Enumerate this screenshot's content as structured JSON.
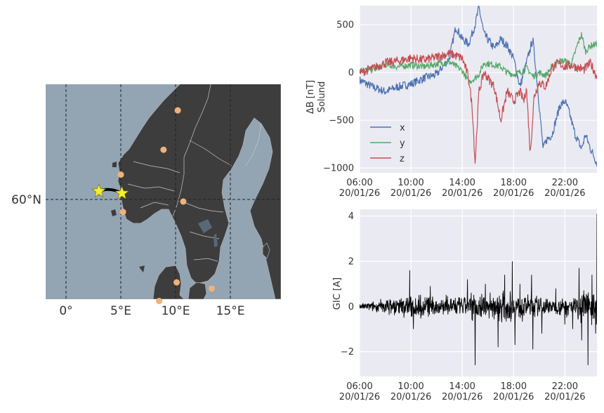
{
  "map": {
    "lon_ticks": [
      "0°",
      "5°E",
      "10°E",
      "15°E"
    ],
    "lat_ticks": [
      "60°N"
    ],
    "colors": {
      "sea": "#93a4b3",
      "land": "#3d3d3d",
      "border": "#c8c8c8",
      "grid": "#222222",
      "station": "#f0b27a",
      "star": "#f3ef2d",
      "line": "#000000"
    },
    "magnetometer_stations": [
      {
        "lon": 10.2,
        "lat": 64.3
      },
      {
        "lon": 8.9,
        "lat": 62.4
      },
      {
        "lon": 5.0,
        "lat": 61.2
      },
      {
        "lon": 10.7,
        "lat": 59.9
      },
      {
        "lon": 5.2,
        "lat": 59.4
      },
      {
        "lon": 13.3,
        "lat": 55.7
      },
      {
        "lon": 10.1,
        "lat": 56.0
      },
      {
        "lon": 8.5,
        "lat": 55.1
      }
    ],
    "line_endpoints": [
      {
        "lon": 3.0,
        "lat": 60.4
      },
      {
        "lon": 5.1,
        "lat": 60.3
      }
    ]
  },
  "chart_data": [
    {
      "type": "line",
      "ylabel": "ΔB [nT]",
      "ylabel2": "Solund",
      "yticks": [
        500,
        0,
        -500,
        -1000
      ],
      "ylim": [
        -1050,
        700
      ],
      "xlim_hours": [
        6,
        24.5
      ],
      "xtick_hours": [
        6,
        10,
        14,
        18,
        22
      ],
      "xticks": [
        [
          "06:00",
          "20/01/26"
        ],
        [
          "10:00",
          "20/01/26"
        ],
        [
          "14:00",
          "20/01/26"
        ],
        [
          "18:00",
          "20/01/26"
        ],
        [
          "22:00",
          "20/01/26"
        ]
      ],
      "grid": true,
      "legend_position": "bottom-left",
      "series": [
        {
          "name": "x",
          "color": "#4c72b0",
          "points": [
            [
              6.0,
              -80
            ],
            [
              7.0,
              -150
            ],
            [
              8.0,
              -200
            ],
            [
              9.0,
              -150
            ],
            [
              10.0,
              -120
            ],
            [
              11.0,
              -60
            ],
            [
              12.0,
              -20
            ],
            [
              13.0,
              150
            ],
            [
              13.5,
              480
            ],
            [
              14.0,
              350
            ],
            [
              14.5,
              300
            ],
            [
              15.0,
              500
            ],
            [
              15.3,
              680
            ],
            [
              15.7,
              400
            ],
            [
              16.5,
              250
            ],
            [
              17.0,
              350
            ],
            [
              17.5,
              280
            ],
            [
              18.0,
              150
            ],
            [
              18.5,
              -150
            ],
            [
              19.0,
              100
            ],
            [
              19.5,
              350
            ],
            [
              19.8,
              -50
            ],
            [
              20.0,
              -350
            ],
            [
              20.3,
              -800
            ],
            [
              20.6,
              -700
            ],
            [
              21.0,
              -650
            ],
            [
              21.3,
              -500
            ],
            [
              21.6,
              -350
            ],
            [
              22.0,
              -300
            ],
            [
              22.3,
              -400
            ],
            [
              22.8,
              -650
            ],
            [
              23.3,
              -800
            ],
            [
              23.6,
              -650
            ],
            [
              24.0,
              -800
            ],
            [
              24.5,
              -950
            ]
          ]
        },
        {
          "name": "y",
          "color": "#55a868",
          "points": [
            [
              6.0,
              20
            ],
            [
              7.0,
              30
            ],
            [
              8.0,
              80
            ],
            [
              9.0,
              60
            ],
            [
              10.0,
              80
            ],
            [
              11.0,
              60
            ],
            [
              12.0,
              90
            ],
            [
              13.0,
              110
            ],
            [
              14.0,
              20
            ],
            [
              14.5,
              -100
            ],
            [
              15.0,
              -60
            ],
            [
              15.3,
              -20
            ],
            [
              15.7,
              100
            ],
            [
              16.5,
              80
            ],
            [
              17.0,
              60
            ],
            [
              17.5,
              0
            ],
            [
              18.0,
              -20
            ],
            [
              18.5,
              0
            ],
            [
              19.0,
              50
            ],
            [
              19.5,
              -40
            ],
            [
              20.0,
              0
            ],
            [
              20.5,
              -30
            ],
            [
              21.0,
              60
            ],
            [
              21.5,
              120
            ],
            [
              22.0,
              120
            ],
            [
              22.5,
              80
            ],
            [
              23.0,
              300
            ],
            [
              23.3,
              400
            ],
            [
              23.6,
              220
            ],
            [
              24.0,
              280
            ],
            [
              24.5,
              300
            ]
          ]
        },
        {
          "name": "z",
          "color": "#c44e52",
          "points": [
            [
              6.0,
              0
            ],
            [
              7.0,
              40
            ],
            [
              8.0,
              100
            ],
            [
              9.0,
              120
            ],
            [
              10.0,
              150
            ],
            [
              11.0,
              130
            ],
            [
              12.0,
              160
            ],
            [
              13.0,
              200
            ],
            [
              14.0,
              150
            ],
            [
              14.5,
              -50
            ],
            [
              14.8,
              -400
            ],
            [
              15.0,
              -950
            ],
            [
              15.3,
              -200
            ],
            [
              15.7,
              0
            ],
            [
              16.5,
              -150
            ],
            [
              17.0,
              -500
            ],
            [
              17.5,
              -200
            ],
            [
              18.0,
              -300
            ],
            [
              18.5,
              -200
            ],
            [
              18.8,
              -300
            ],
            [
              19.0,
              -150
            ],
            [
              19.3,
              -850
            ],
            [
              19.6,
              -250
            ],
            [
              20.0,
              -100
            ],
            [
              20.5,
              -150
            ],
            [
              21.0,
              50
            ],
            [
              21.5,
              100
            ],
            [
              22.0,
              60
            ],
            [
              22.5,
              80
            ],
            [
              23.0,
              50
            ],
            [
              23.5,
              30
            ],
            [
              24.0,
              100
            ],
            [
              24.5,
              -50
            ]
          ]
        }
      ]
    },
    {
      "type": "line",
      "ylabel": "GIC [A]",
      "yticks": [
        4,
        2,
        0,
        -2
      ],
      "ylim": [
        -3.1,
        4.3
      ],
      "xlim_hours": [
        6,
        24.5
      ],
      "xtick_hours": [
        6,
        10,
        14,
        18,
        22
      ],
      "xticks": [
        [
          "06:00",
          "20/01/26"
        ],
        [
          "10:00",
          "20/01/26"
        ],
        [
          "14:00",
          "20/01/26"
        ],
        [
          "18:00",
          "20/01/26"
        ],
        [
          "22:00",
          "20/01/26"
        ]
      ],
      "grid": true,
      "series": [
        {
          "color": "#000000",
          "envelope": [
            [
              6.0,
              0.15
            ],
            [
              7.0,
              0.25
            ],
            [
              8.0,
              0.4
            ],
            [
              9.0,
              0.5
            ],
            [
              10.0,
              0.6
            ],
            [
              11.0,
              0.6
            ],
            [
              12.0,
              0.5
            ],
            [
              13.0,
              0.6
            ],
            [
              14.0,
              0.5
            ],
            [
              15.0,
              0.8
            ],
            [
              16.0,
              0.7
            ],
            [
              17.0,
              0.8
            ],
            [
              18.0,
              0.7
            ],
            [
              19.0,
              0.7
            ],
            [
              20.0,
              0.5
            ],
            [
              21.0,
              0.4
            ],
            [
              22.0,
              0.5
            ],
            [
              23.0,
              0.7
            ],
            [
              24.0,
              0.9
            ],
            [
              24.5,
              1.0
            ]
          ],
          "spikes": [
            [
              9.9,
              1.6
            ],
            [
              10.2,
              -1.0
            ],
            [
              11.5,
              0.9
            ],
            [
              14.4,
              1.2
            ],
            [
              15.0,
              -2.6
            ],
            [
              15.8,
              1.0
            ],
            [
              16.8,
              -1.8
            ],
            [
              17.3,
              1.4
            ],
            [
              17.9,
              2.0
            ],
            [
              18.1,
              -1.7
            ],
            [
              18.5,
              1.0
            ],
            [
              19.4,
              1.4
            ],
            [
              19.5,
              -1.9
            ],
            [
              20.2,
              -1.2
            ],
            [
              21.3,
              0.8
            ],
            [
              22.0,
              -0.8
            ],
            [
              22.6,
              -1.0
            ],
            [
              23.1,
              1.7
            ],
            [
              23.3,
              -1.5
            ],
            [
              23.8,
              -2.6
            ],
            [
              24.1,
              1.4
            ],
            [
              24.4,
              -1.2
            ],
            [
              24.5,
              4.1
            ]
          ]
        }
      ]
    }
  ]
}
